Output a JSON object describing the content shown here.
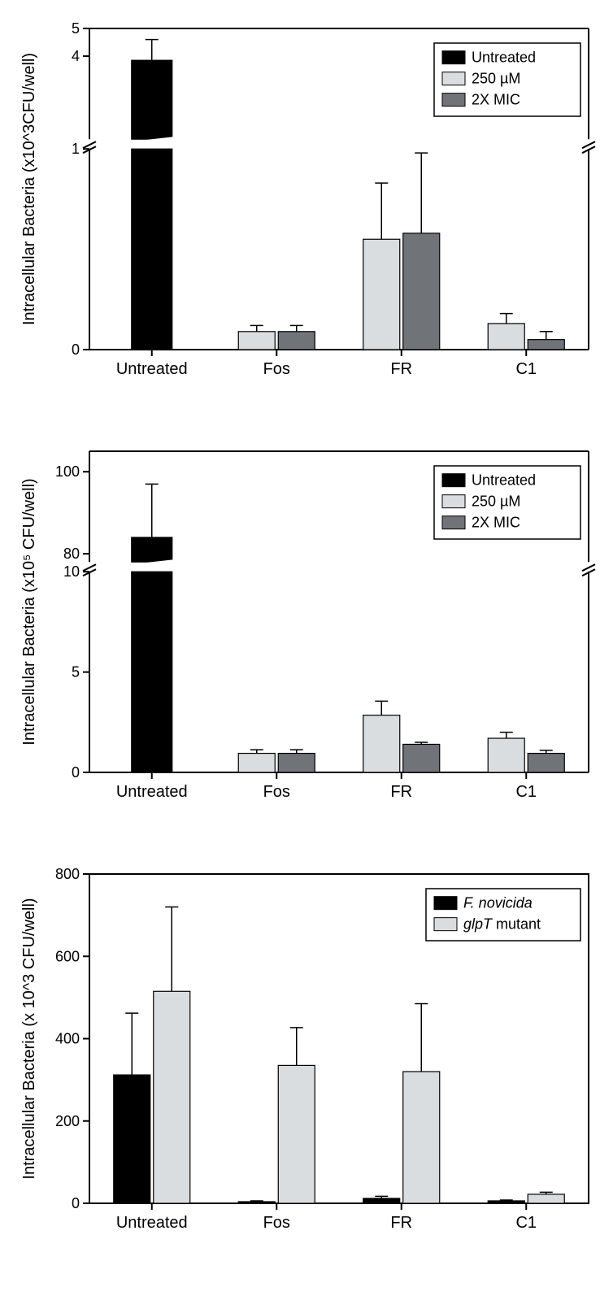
{
  "global": {
    "background_color": "#ffffff",
    "categories": [
      "Untreated",
      "Fos",
      "FR",
      "C1"
    ],
    "colors": {
      "untreated": "#000000",
      "c250um": "#d9dde0",
      "x2mic": "#707478",
      "fnovicida": "#000000",
      "glpTmutant": "#d9dde0"
    },
    "axis_color": "#000000",
    "font_family": "Arial",
    "tick_fontsize": 18,
    "cat_fontsize": 20,
    "ytitle_fontsize": 20,
    "legend_fontsize": 18,
    "bar_w_single": 50,
    "bar_w_pair": 45,
    "bar_gap_pair": 4
  },
  "panelA": {
    "y_title": "Intracellular Bacteria (x10^3CFU/well)",
    "broken_axis": true,
    "lower": {
      "min": 0,
      "max": 1,
      "ticks": [
        0
      ]
    },
    "upper": {
      "min": 1.0,
      "max": 5,
      "ticks": [
        4,
        5
      ]
    },
    "legend": {
      "items": [
        {
          "label": "Untreated",
          "fill": "#000000"
        },
        {
          "label": "250 µM",
          "fill": "#d9dde0"
        },
        {
          "label": "2X MIC",
          "fill": "#707478"
        }
      ],
      "position": "top-right"
    },
    "groups": [
      {
        "cat": "Untreated",
        "bars": [
          {
            "series": "untreated",
            "value": 3.85,
            "err": 0.75
          }
        ]
      },
      {
        "cat": "Fos",
        "bars": [
          {
            "series": "c250um",
            "value": 0.09,
            "err": 0.03
          },
          {
            "series": "x2mic",
            "value": 0.09,
            "err": 0.03
          }
        ]
      },
      {
        "cat": "FR",
        "bars": [
          {
            "series": "c250um",
            "value": 0.55,
            "err": 0.28
          },
          {
            "series": "x2mic",
            "value": 0.58,
            "err": 0.4
          }
        ]
      },
      {
        "cat": "C1",
        "bars": [
          {
            "series": "c250um",
            "value": 0.13,
            "err": 0.05
          },
          {
            "series": "x2mic",
            "value": 0.05,
            "err": 0.04
          }
        ]
      }
    ]
  },
  "panelB": {
    "y_title": "Intracellular Bacteria (x10⁵ CFU/well)",
    "broken_axis": true,
    "lower": {
      "min": 0,
      "max": 10,
      "ticks": [
        0,
        5
      ]
    },
    "upper": {
      "min": 78,
      "max": 105,
      "ticks": [
        80,
        100
      ]
    },
    "legend": {
      "items": [
        {
          "label": "Untreated",
          "fill": "#000000"
        },
        {
          "label": "250 µM",
          "fill": "#d9dde0"
        },
        {
          "label": "2X MIC",
          "fill": "#707478"
        }
      ],
      "position": "top-right"
    },
    "groups": [
      {
        "cat": "Untreated",
        "bars": [
          {
            "series": "untreated",
            "value": 84,
            "err": 13
          }
        ]
      },
      {
        "cat": "Fos",
        "bars": [
          {
            "series": "c250um",
            "value": 0.95,
            "err": 0.18
          },
          {
            "series": "x2mic",
            "value": 0.95,
            "err": 0.18
          }
        ]
      },
      {
        "cat": "FR",
        "bars": [
          {
            "series": "c250um",
            "value": 2.85,
            "err": 0.7
          },
          {
            "series": "x2mic",
            "value": 1.4,
            "err": 0.1
          }
        ]
      },
      {
        "cat": "C1",
        "bars": [
          {
            "series": "c250um",
            "value": 1.7,
            "err": 0.3
          },
          {
            "series": "x2mic",
            "value": 0.95,
            "err": 0.15
          }
        ]
      }
    ]
  },
  "panelC": {
    "y_title": "Intracellular Bacteria (x 10^3 CFU/well)",
    "broken_axis": false,
    "ylim": [
      0,
      800
    ],
    "ytick_step": 200,
    "legend": {
      "items": [
        {
          "label": "F. novicida",
          "fill": "#000000",
          "italic": true
        },
        {
          "label": "glpT mutant",
          "fill": "#d9dde0",
          "italic_partial": "glpT"
        }
      ],
      "position": "top-right"
    },
    "groups": [
      {
        "cat": "Untreated",
        "bars": [
          {
            "series": "fnovicida",
            "value": 312,
            "err": 150
          },
          {
            "series": "glpTmutant",
            "value": 515,
            "err": 205
          }
        ]
      },
      {
        "cat": "Fos",
        "bars": [
          {
            "series": "fnovicida",
            "value": 4,
            "err": 2
          },
          {
            "series": "glpTmutant",
            "value": 335,
            "err": 92
          }
        ]
      },
      {
        "cat": "FR",
        "bars": [
          {
            "series": "fnovicida",
            "value": 12,
            "err": 5
          },
          {
            "series": "glpTmutant",
            "value": 320,
            "err": 165
          }
        ]
      },
      {
        "cat": "C1",
        "bars": [
          {
            "series": "fnovicida",
            "value": 6,
            "err": 2
          },
          {
            "series": "glpTmutant",
            "value": 22,
            "err": 5
          }
        ]
      }
    ]
  }
}
